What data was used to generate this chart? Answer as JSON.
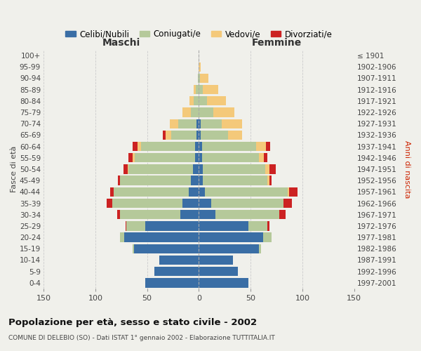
{
  "age_groups": [
    "0-4",
    "5-9",
    "10-14",
    "15-19",
    "20-24",
    "25-29",
    "30-34",
    "35-39",
    "40-44",
    "45-49",
    "50-54",
    "55-59",
    "60-64",
    "65-69",
    "70-74",
    "75-79",
    "80-84",
    "85-89",
    "90-94",
    "95-99",
    "100+"
  ],
  "birth_years": [
    "1997-2001",
    "1992-1996",
    "1987-1991",
    "1982-1986",
    "1977-1981",
    "1972-1976",
    "1967-1971",
    "1962-1966",
    "1957-1961",
    "1952-1956",
    "1947-1951",
    "1942-1946",
    "1937-1941",
    "1932-1936",
    "1927-1931",
    "1922-1926",
    "1917-1921",
    "1912-1916",
    "1907-1911",
    "1902-1906",
    "≤ 1901"
  ],
  "male_celibi": [
    52,
    43,
    38,
    63,
    72,
    52,
    18,
    16,
    10,
    8,
    6,
    4,
    4,
    2,
    2,
    0,
    0,
    0,
    0,
    0,
    0
  ],
  "male_coniugati": [
    0,
    0,
    0,
    1,
    4,
    18,
    58,
    68,
    72,
    68,
    62,
    58,
    52,
    25,
    18,
    8,
    5,
    3,
    1,
    0,
    0
  ],
  "male_vedovi": [
    0,
    0,
    0,
    0,
    0,
    0,
    0,
    0,
    0,
    0,
    1,
    2,
    3,
    5,
    8,
    8,
    4,
    2,
    0,
    0,
    0
  ],
  "male_divorziati": [
    0,
    0,
    0,
    0,
    0,
    1,
    3,
    5,
    4,
    2,
    4,
    4,
    5,
    3,
    0,
    0,
    0,
    0,
    0,
    0,
    0
  ],
  "female_nubili": [
    48,
    38,
    33,
    58,
    62,
    48,
    16,
    12,
    6,
    4,
    4,
    3,
    3,
    2,
    2,
    0,
    0,
    0,
    0,
    0,
    0
  ],
  "female_coniugate": [
    0,
    0,
    0,
    2,
    8,
    18,
    62,
    70,
    80,
    62,
    60,
    55,
    52,
    26,
    20,
    14,
    8,
    4,
    1,
    0,
    0
  ],
  "female_vedove": [
    0,
    0,
    0,
    0,
    0,
    0,
    0,
    0,
    1,
    2,
    4,
    5,
    10,
    14,
    20,
    20,
    18,
    15,
    8,
    2,
    0
  ],
  "female_divorziate": [
    0,
    0,
    0,
    0,
    0,
    2,
    6,
    8,
    8,
    2,
    6,
    3,
    4,
    0,
    0,
    0,
    0,
    0,
    0,
    0,
    0
  ],
  "colors_celibi": "#3a6ea5",
  "colors_coniugati": "#b5c99a",
  "colors_vedovi": "#f4c97a",
  "colors_divorziati": "#cc2222",
  "xlim": 150,
  "title": "Popolazione per età, sesso e stato civile - 2002",
  "subtitle": "COMUNE DI DELEBIO (SO) - Dati ISTAT 1° gennaio 2002 - Elaborazione TUTTITALIA.IT",
  "ylabel_left": "Fasce di età",
  "ylabel_right": "Anni di nascita",
  "label_maschi": "Maschi",
  "label_femmine": "Femmine",
  "bg_color": "#f0f0eb",
  "legend_labels": [
    "Celibi/Nubili",
    "Coniugati/e",
    "Vedovi/e",
    "Divorziati/e"
  ]
}
